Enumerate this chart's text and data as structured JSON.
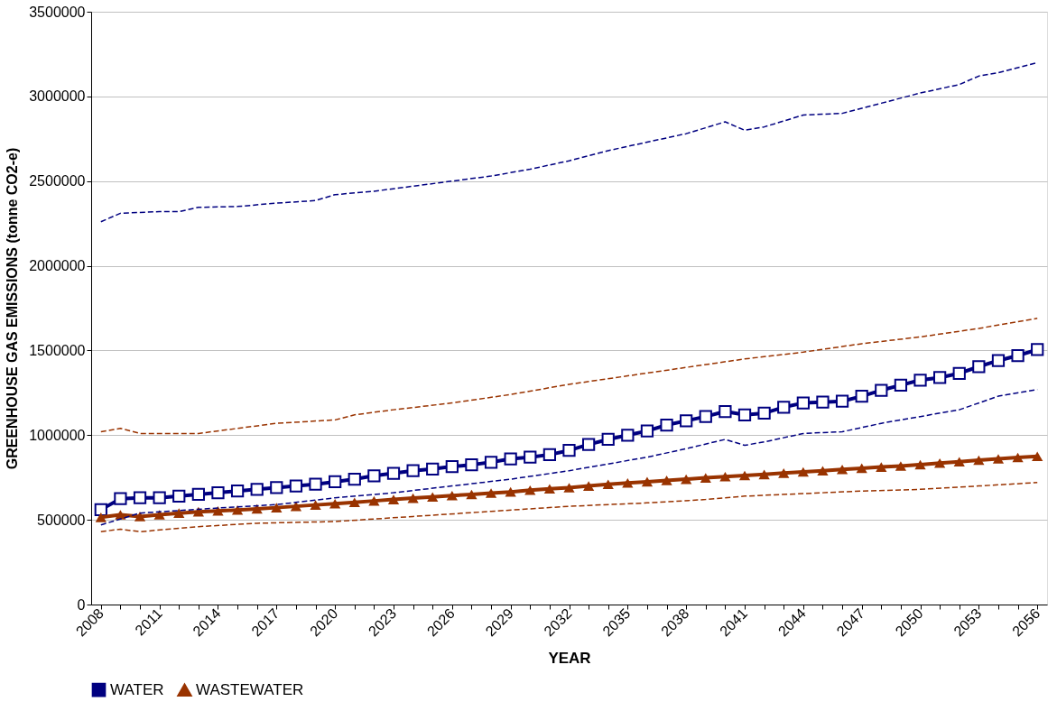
{
  "chart_data": {
    "type": "line",
    "xlabel": "YEAR",
    "ylabel": "GREENHOUSE GAS EMISSIONS (tonne CO2-e)",
    "xlim": [
      2007.5,
      2056.5
    ],
    "ylim": [
      0,
      3500000
    ],
    "yticks": [
      0,
      500000,
      1000000,
      1500000,
      2000000,
      2500000,
      3000000,
      3500000
    ],
    "xticks": [
      2008,
      {
        "value": 2009,
        "label": null
      },
      {
        "value": 2010,
        "label": null
      },
      2011,
      {
        "value": 2012,
        "label": null
      },
      {
        "value": 2013,
        "label": null
      },
      2014,
      {
        "value": 2015,
        "label": null
      },
      {
        "value": 2016,
        "label": null
      },
      2017,
      {
        "value": 2018,
        "label": null
      },
      {
        "value": 2019,
        "label": null
      },
      2020,
      {
        "value": 2021,
        "label": null
      },
      {
        "value": 2022,
        "label": null
      },
      2023,
      {
        "value": 2024,
        "label": null
      },
      {
        "value": 2025,
        "label": null
      },
      2026,
      {
        "value": 2027,
        "label": null
      },
      {
        "value": 2028,
        "label": null
      },
      2029,
      {
        "value": 2030,
        "label": null
      },
      {
        "value": 2031,
        "label": null
      },
      2032,
      {
        "value": 2033,
        "label": null
      },
      {
        "value": 2034,
        "label": null
      },
      2035,
      {
        "value": 2036,
        "label": null
      },
      {
        "value": 2037,
        "label": null
      },
      2038,
      {
        "value": 2039,
        "label": null
      },
      {
        "value": 2040,
        "label": null
      },
      2041,
      {
        "value": 2042,
        "label": null
      },
      {
        "value": 2043,
        "label": null
      },
      2044,
      {
        "value": 2045,
        "label": null
      },
      {
        "value": 2046,
        "label": null
      },
      2047,
      {
        "value": 2048,
        "label": null
      },
      {
        "value": 2049,
        "label": null
      },
      2050,
      {
        "value": 2051,
        "label": null
      },
      {
        "value": 2052,
        "label": null
      },
      2053,
      {
        "value": 2054,
        "label": null
      },
      {
        "value": 2055,
        "label": null
      },
      2056
    ],
    "grid": "y",
    "legend": "bottom",
    "line_style": "solid",
    "series": [
      {
        "name": "WATER",
        "color": "#000080",
        "marker": "square",
        "x": [
          2008,
          2009,
          2010,
          2011,
          2012,
          2013,
          2014,
          2015,
          2016,
          2017,
          2018,
          2019,
          2020,
          2021,
          2022,
          2023,
          2024,
          2025,
          2026,
          2027,
          2028,
          2029,
          2030,
          2031,
          2032,
          2033,
          2034,
          2035,
          2036,
          2037,
          2038,
          2039,
          2040,
          2041,
          2042,
          2043,
          2044,
          2045,
          2046,
          2047,
          2048,
          2049,
          2050,
          2051,
          2052,
          2053,
          2054,
          2055,
          2056
        ],
        "values": [
          560000,
          625000,
          630000,
          630000,
          640000,
          650000,
          660000,
          670000,
          680000,
          690000,
          700000,
          710000,
          725000,
          740000,
          760000,
          775000,
          790000,
          800000,
          815000,
          825000,
          840000,
          860000,
          870000,
          885000,
          910000,
          945000,
          975000,
          1000000,
          1025000,
          1060000,
          1085000,
          1110000,
          1140000,
          1120000,
          1130000,
          1165000,
          1190000,
          1195000,
          1200000,
          1230000,
          1265000,
          1295000,
          1325000,
          1340000,
          1365000,
          1405000,
          1440000,
          1470000,
          1505000
        ]
      },
      {
        "name": "WASTEWATER",
        "color": "#993300",
        "marker": "triangle",
        "x": [
          2008,
          2009,
          2010,
          2011,
          2012,
          2013,
          2014,
          2015,
          2016,
          2017,
          2018,
          2019,
          2020,
          2021,
          2022,
          2023,
          2024,
          2025,
          2026,
          2027,
          2028,
          2029,
          2030,
          2031,
          2032,
          2033,
          2034,
          2035,
          2036,
          2037,
          2038,
          2039,
          2040,
          2041,
          2042,
          2043,
          2044,
          2045,
          2046,
          2047,
          2048,
          2049,
          2050,
          2051,
          2052,
          2053,
          2054,
          2055,
          2056
        ],
        "values": [
          515000,
          530000,
          520000,
          530000,
          540000,
          548000,
          553000,
          558000,
          565000,
          572000,
          580000,
          588000,
          595000,
          603000,
          612000,
          620000,
          628000,
          635000,
          643000,
          650000,
          658000,
          665000,
          675000,
          683000,
          690000,
          700000,
          710000,
          718000,
          725000,
          733000,
          740000,
          748000,
          755000,
          762000,
          768000,
          776000,
          783000,
          790000,
          798000,
          805000,
          812000,
          818000,
          826000,
          835000,
          843000,
          852000,
          860000,
          868000,
          875000
        ]
      },
      {
        "color": "#000080",
        "marker": "none",
        "line_style": "dashed",
        "x": [
          2008,
          2009,
          2011,
          2012,
          2013,
          2015,
          2017,
          2019,
          2020,
          2022,
          2024,
          2026,
          2028,
          2030,
          2032,
          2034,
          2036,
          2038,
          2040,
          2041,
          2042,
          2044,
          2046,
          2048,
          2050,
          2052,
          2053,
          2054,
          2056
        ],
        "values": [
          2260000,
          2310000,
          2320000,
          2320000,
          2345000,
          2350000,
          2370000,
          2385000,
          2420000,
          2440000,
          2470000,
          2500000,
          2530000,
          2570000,
          2620000,
          2680000,
          2730000,
          2780000,
          2850000,
          2800000,
          2820000,
          2890000,
          2900000,
          2960000,
          3020000,
          3070000,
          3120000,
          3140000,
          3200000
        ]
      },
      {
        "color": "#000080",
        "marker": "none",
        "line_style": "dashed",
        "x": [
          2008,
          2010,
          2014,
          2017,
          2020,
          2023,
          2026,
          2029,
          2032,
          2034,
          2036,
          2038,
          2040,
          2041,
          2042,
          2044,
          2046,
          2048,
          2050,
          2052,
          2054,
          2056
        ],
        "values": [
          470000,
          540000,
          570000,
          590000,
          630000,
          660000,
          700000,
          740000,
          790000,
          830000,
          870000,
          920000,
          975000,
          940000,
          960000,
          1010000,
          1020000,
          1070000,
          1110000,
          1150000,
          1230000,
          1270000
        ]
      },
      {
        "color": "#993300",
        "marker": "none",
        "line_style": "dashed",
        "x": [
          2008,
          2009,
          2010,
          2013,
          2015,
          2017,
          2020,
          2021,
          2023,
          2026,
          2029,
          2032,
          2035,
          2038,
          2041,
          2044,
          2047,
          2050,
          2053,
          2056
        ],
        "values": [
          1020000,
          1040000,
          1010000,
          1010000,
          1040000,
          1070000,
          1090000,
          1120000,
          1150000,
          1190000,
          1240000,
          1300000,
          1350000,
          1400000,
          1450000,
          1490000,
          1540000,
          1580000,
          1630000,
          1690000
        ]
      },
      {
        "color": "#993300",
        "marker": "none",
        "line_style": "dashed",
        "x": [
          2008,
          2009,
          2010,
          2013,
          2016,
          2020,
          2024,
          2028,
          2032,
          2036,
          2039,
          2041,
          2044,
          2047,
          2050,
          2053,
          2056
        ],
        "values": [
          430000,
          445000,
          430000,
          460000,
          480000,
          490000,
          520000,
          550000,
          580000,
          600000,
          620000,
          640000,
          655000,
          670000,
          680000,
          700000,
          720000
        ]
      }
    ]
  }
}
